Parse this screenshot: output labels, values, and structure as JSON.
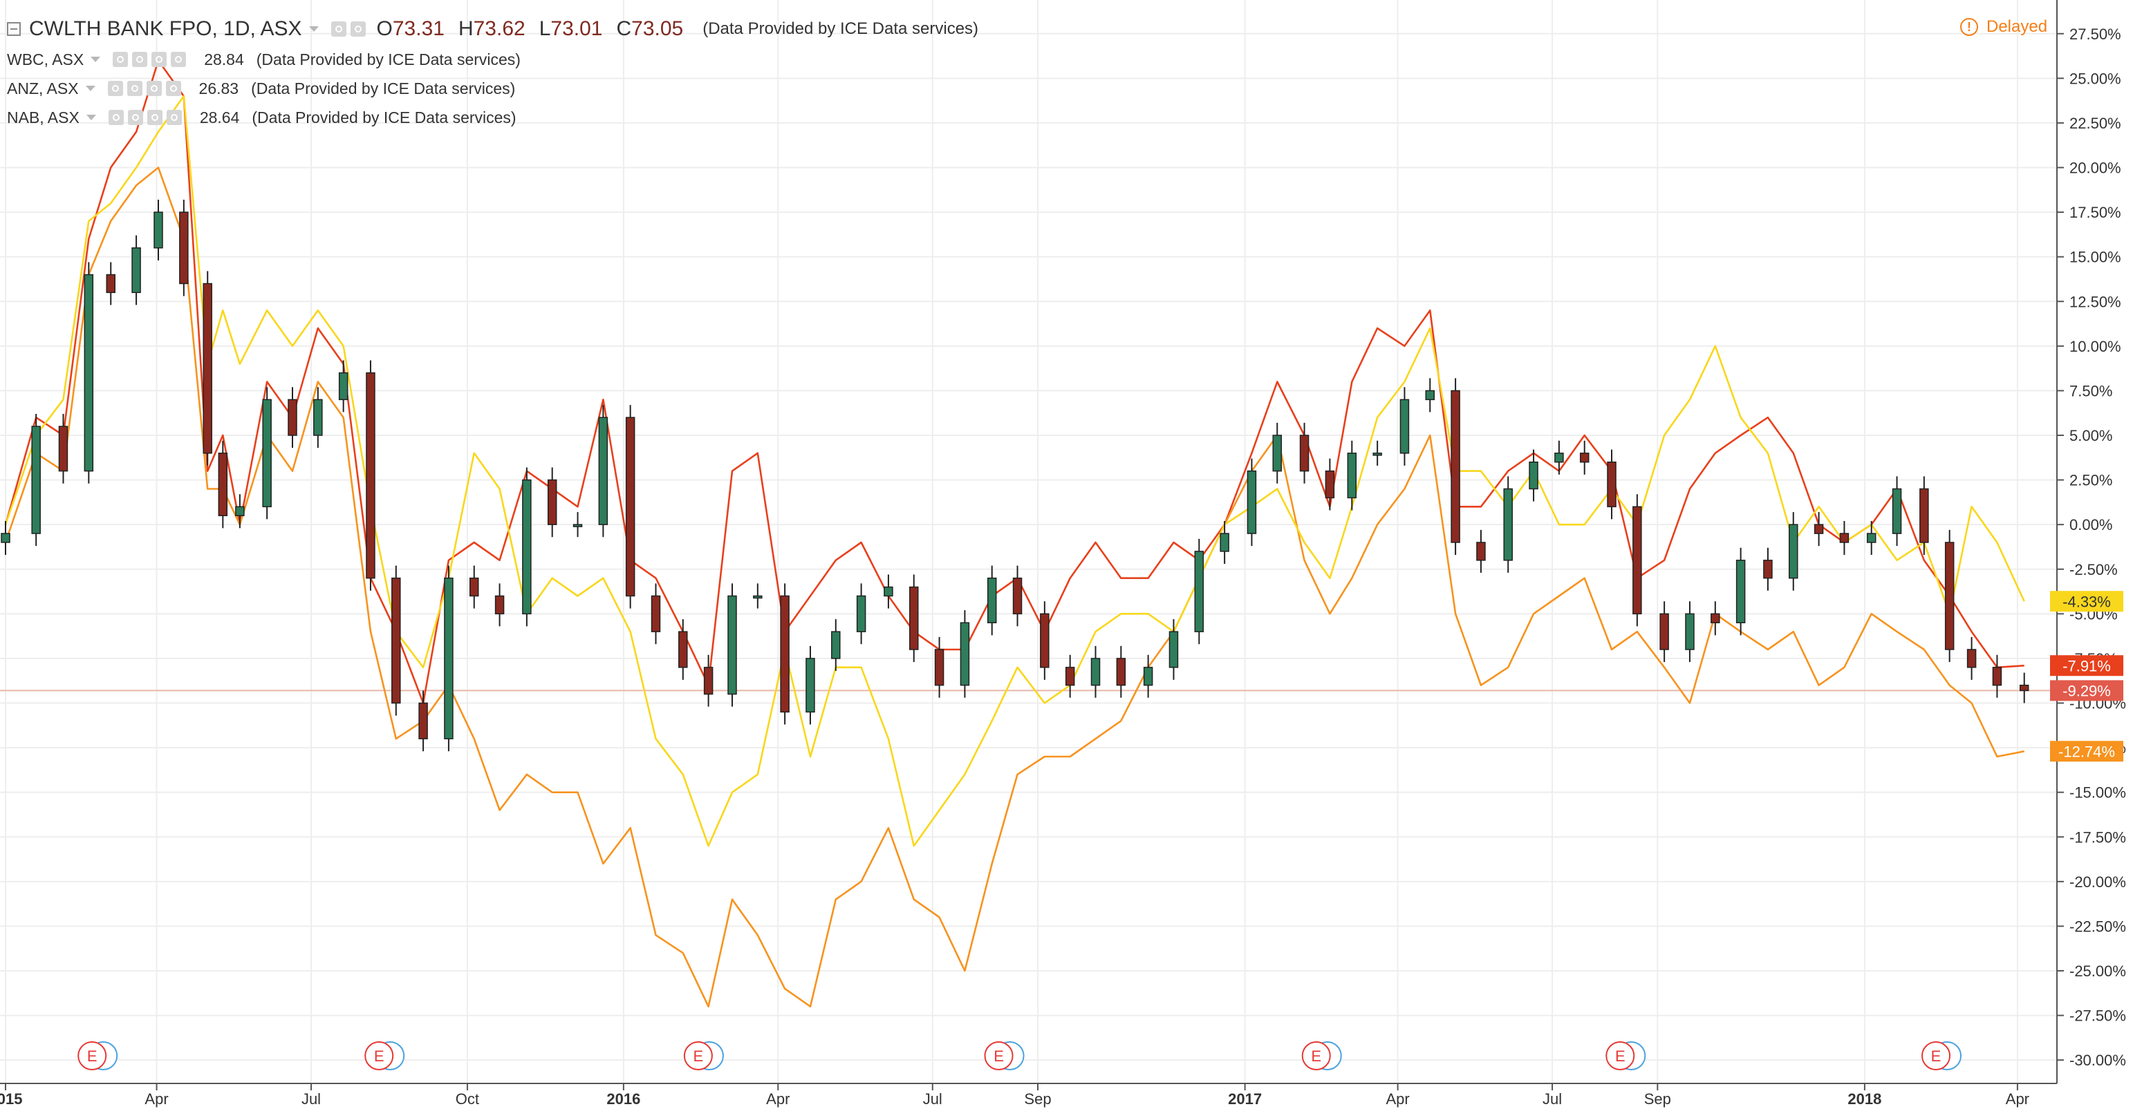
{
  "main_series": {
    "title": "CWLTH BANK FPO, 1D, ASX",
    "ohlc": [
      {
        "key": "O",
        "value": "73.31"
      },
      {
        "key": "H",
        "value": "73.62"
      },
      {
        "key": "L",
        "value": "73.01"
      },
      {
        "key": "C",
        "value": "73.05"
      }
    ],
    "source_note": "(Data Provided by ICE Data services)"
  },
  "status": {
    "text": "Delayed",
    "icon": "exclamation-circle-icon",
    "color": "#f57f17"
  },
  "colors": {
    "candle_up": "#2e7d5b",
    "candle_down": "#8b2a20",
    "grid": "#eeeeee",
    "axis_text": "#333333",
    "base_line": "#e8b8a8"
  },
  "chart_data": {
    "type": "line",
    "title": "CWLTH BANK FPO, 1D, ASX",
    "xlabel": "",
    "ylabel": "",
    "percent_scale": true,
    "ylim": [
      -31,
      29
    ],
    "yticks": [
      27.5,
      25,
      22.5,
      20,
      17.5,
      15,
      12.5,
      10,
      7.5,
      5,
      2.5,
      0,
      -2.5,
      -5,
      -7.5,
      -10,
      -12.5,
      -15,
      -17.5,
      -20,
      -22.5,
      -25,
      -27.5,
      -30
    ],
    "ytick_labels": [
      "27.50%",
      "25.00%",
      "22.50%",
      "20.00%",
      "17.50%",
      "15.00%",
      "12.50%",
      "10.00%",
      "7.50%",
      "5.00%",
      "2.50%",
      "0.00%",
      "-2.50%",
      "-5.00%",
      "-7.50%",
      "-10.00%",
      "-12.50%",
      "-15.00%",
      "-17.50%",
      "-20.00%",
      "-22.50%",
      "-25.00%",
      "-27.50%",
      "-30.00%"
    ],
    "x_range": [
      "2015-01-02",
      "2018-04-10"
    ],
    "x_ticks": [
      {
        "date": "2015-01-02",
        "label": "2015",
        "bold": true
      },
      {
        "date": "2015-04-01",
        "label": "Apr",
        "bold": false
      },
      {
        "date": "2015-07-01",
        "label": "Jul",
        "bold": false
      },
      {
        "date": "2015-10-01",
        "label": "Oct",
        "bold": false
      },
      {
        "date": "2016-01-01",
        "label": "2016",
        "bold": true
      },
      {
        "date": "2016-04-01",
        "label": "Apr",
        "bold": false
      },
      {
        "date": "2016-07-01",
        "label": "Jul",
        "bold": false
      },
      {
        "date": "2016-09-01",
        "label": "Sep",
        "bold": false
      },
      {
        "date": "2017-01-01",
        "label": "2017",
        "bold": true
      },
      {
        "date": "2017-04-01",
        "label": "Apr",
        "bold": false
      },
      {
        "date": "2017-07-01",
        "label": "Jul",
        "bold": false
      },
      {
        "date": "2017-09-01",
        "label": "Sep",
        "bold": false
      },
      {
        "date": "2018-01-01",
        "label": "2018",
        "bold": true
      },
      {
        "date": "2018-04-01",
        "label": "Apr",
        "bold": false
      }
    ],
    "grid": true,
    "legend_placement": "top-left",
    "main": {
      "name": "CWLTH BANK FPO, 1D, ASX",
      "style": "candlestick",
      "last_label": "-9.29%",
      "label_color": "#e25a4c",
      "x": [
        "2015-01-02",
        "2015-01-20",
        "2015-02-05",
        "2015-02-20",
        "2015-03-05",
        "2015-03-20",
        "2015-04-02",
        "2015-04-17",
        "2015-05-01",
        "2015-05-10",
        "2015-05-20",
        "2015-06-05",
        "2015-06-20",
        "2015-07-05",
        "2015-07-20",
        "2015-08-05",
        "2015-08-20",
        "2015-09-05",
        "2015-09-20",
        "2015-10-05",
        "2015-10-20",
        "2015-11-05",
        "2015-11-20",
        "2015-12-05",
        "2015-12-20",
        "2016-01-05",
        "2016-01-20",
        "2016-02-05",
        "2016-02-20",
        "2016-03-05",
        "2016-03-20",
        "2016-04-05",
        "2016-04-20",
        "2016-05-05",
        "2016-05-20",
        "2016-06-05",
        "2016-06-20",
        "2016-07-05",
        "2016-07-20",
        "2016-08-05",
        "2016-08-20",
        "2016-09-05",
        "2016-09-20",
        "2016-10-05",
        "2016-10-20",
        "2016-11-05",
        "2016-11-20",
        "2016-12-05",
        "2016-12-20",
        "2017-01-05",
        "2017-01-20",
        "2017-02-05",
        "2017-02-20",
        "2017-03-05",
        "2017-03-20",
        "2017-04-05",
        "2017-04-20",
        "2017-05-05",
        "2017-05-20",
        "2017-06-05",
        "2017-06-20",
        "2017-07-05",
        "2017-07-20",
        "2017-08-05",
        "2017-08-20",
        "2017-09-05",
        "2017-09-20",
        "2017-10-05",
        "2017-10-20",
        "2017-11-05",
        "2017-11-20",
        "2017-12-05",
        "2017-12-20",
        "2018-01-05",
        "2018-01-20",
        "2018-02-05",
        "2018-02-20",
        "2018-03-05",
        "2018-03-20",
        "2018-04-05"
      ],
      "y": [
        -0.5,
        5.5,
        3,
        14,
        13,
        15.5,
        17.5,
        13.5,
        4,
        0.5,
        1,
        7,
        5,
        7,
        8.5,
        -3,
        -10,
        -12,
        -3,
        -4,
        -5,
        2.5,
        0,
        0,
        6,
        -4,
        -6,
        -8,
        -9.5,
        -4,
        -4,
        -10.5,
        -7.5,
        -6,
        -4,
        -3.5,
        -7,
        -9,
        -5.5,
        -3,
        -5,
        -8,
        -9,
        -7.5,
        -9,
        -8,
        -6,
        -1.5,
        -0.5,
        3,
        5,
        3,
        1.5,
        4,
        4,
        7,
        7.5,
        -1,
        -2,
        2,
        3.5,
        4,
        3.5,
        1,
        -5,
        -7,
        -5,
        -5.5,
        -2,
        -3,
        0,
        -0.5,
        -1,
        -0.5,
        2,
        -1,
        -7,
        -8,
        -9,
        -9.3
      ]
    },
    "series": [
      {
        "name": "WBC, ASX",
        "color": "#e8401c",
        "legend_value": "28.84",
        "last_label": "-7.91%",
        "x": [
          "2015-01-02",
          "2015-01-20",
          "2015-02-05",
          "2015-02-20",
          "2015-03-05",
          "2015-03-20",
          "2015-04-02",
          "2015-04-17",
          "2015-05-01",
          "2015-05-10",
          "2015-05-20",
          "2015-06-05",
          "2015-06-20",
          "2015-07-05",
          "2015-07-20",
          "2015-08-05",
          "2015-08-20",
          "2015-09-05",
          "2015-09-20",
          "2015-10-05",
          "2015-10-20",
          "2015-11-05",
          "2015-11-20",
          "2015-12-05",
          "2015-12-20",
          "2016-01-05",
          "2016-01-20",
          "2016-02-05",
          "2016-02-20",
          "2016-03-05",
          "2016-03-20",
          "2016-04-05",
          "2016-04-20",
          "2016-05-05",
          "2016-05-20",
          "2016-06-05",
          "2016-06-20",
          "2016-07-05",
          "2016-07-20",
          "2016-08-05",
          "2016-08-20",
          "2016-09-05",
          "2016-09-20",
          "2016-10-05",
          "2016-10-20",
          "2016-11-05",
          "2016-11-20",
          "2016-12-05",
          "2016-12-20",
          "2017-01-05",
          "2017-01-20",
          "2017-02-05",
          "2017-02-20",
          "2017-03-05",
          "2017-03-20",
          "2017-04-05",
          "2017-04-20",
          "2017-05-05",
          "2017-05-20",
          "2017-06-05",
          "2017-06-20",
          "2017-07-05",
          "2017-07-20",
          "2017-08-05",
          "2017-08-20",
          "2017-09-05",
          "2017-09-20",
          "2017-10-05",
          "2017-10-20",
          "2017-11-05",
          "2017-11-20",
          "2017-12-05",
          "2017-12-20",
          "2018-01-05",
          "2018-01-20",
          "2018-02-05",
          "2018-02-20",
          "2018-03-05",
          "2018-03-20",
          "2018-04-05"
        ],
        "y": [
          0,
          6,
          5,
          16,
          20,
          22,
          26,
          24,
          3,
          5,
          0,
          8,
          6,
          11,
          9,
          -3,
          -6,
          -10,
          -2,
          -1,
          -2,
          3,
          2,
          1,
          7,
          -2,
          -3,
          -6,
          -9,
          3,
          4,
          -6,
          -4,
          -2,
          -1,
          -4,
          -6,
          -7,
          -7,
          -4,
          -3,
          -6,
          -3,
          -1,
          -3,
          -3,
          -1,
          -2,
          0,
          4,
          8,
          5,
          1,
          8,
          11,
          10,
          12,
          1,
          1,
          3,
          4,
          3,
          5,
          3,
          -3,
          -2,
          2,
          4,
          5,
          6,
          4,
          0,
          -1,
          0,
          2,
          -2,
          -4,
          -6,
          -8,
          -7.9
        ]
      },
      {
        "name": "ANZ, ASX",
        "color": "#f7931e",
        "legend_value": "26.83",
        "last_label": "-12.74%",
        "x": [
          "2015-01-02",
          "2015-01-20",
          "2015-02-05",
          "2015-02-20",
          "2015-03-05",
          "2015-03-20",
          "2015-04-02",
          "2015-04-17",
          "2015-05-01",
          "2015-05-10",
          "2015-05-20",
          "2015-06-05",
          "2015-06-20",
          "2015-07-05",
          "2015-07-20",
          "2015-08-05",
          "2015-08-20",
          "2015-09-05",
          "2015-09-20",
          "2015-10-05",
          "2015-10-20",
          "2015-11-05",
          "2015-11-20",
          "2015-12-05",
          "2015-12-20",
          "2016-01-05",
          "2016-01-20",
          "2016-02-05",
          "2016-02-20",
          "2016-03-05",
          "2016-03-20",
          "2016-04-05",
          "2016-04-20",
          "2016-05-05",
          "2016-05-20",
          "2016-06-05",
          "2016-06-20",
          "2016-07-05",
          "2016-07-20",
          "2016-08-05",
          "2016-08-20",
          "2016-09-05",
          "2016-09-20",
          "2016-10-05",
          "2016-10-20",
          "2016-11-05",
          "2016-11-20",
          "2016-12-05",
          "2016-12-20",
          "2017-01-05",
          "2017-01-20",
          "2017-02-05",
          "2017-02-20",
          "2017-03-05",
          "2017-03-20",
          "2017-04-05",
          "2017-04-20",
          "2017-05-05",
          "2017-05-20",
          "2017-06-05",
          "2017-06-20",
          "2017-07-05",
          "2017-07-20",
          "2017-08-05",
          "2017-08-20",
          "2017-09-05",
          "2017-09-20",
          "2017-10-05",
          "2017-10-20",
          "2017-11-05",
          "2017-11-20",
          "2017-12-05",
          "2017-12-20",
          "2018-01-05",
          "2018-01-20",
          "2018-02-05",
          "2018-02-20",
          "2018-03-05",
          "2018-03-20",
          "2018-04-05"
        ],
        "y": [
          -1,
          4,
          3,
          14,
          17,
          19,
          20,
          16,
          2,
          2,
          0,
          5,
          3,
          8,
          6,
          -6,
          -12,
          -11,
          -9,
          -12,
          -16,
          -14,
          -15,
          -15,
          -19,
          -17,
          -23,
          -24,
          -27,
          -21,
          -23,
          -26,
          -27,
          -21,
          -20,
          -17,
          -21,
          -22,
          -25,
          -19,
          -14,
          -13,
          -13,
          -12,
          -11,
          -8,
          -6,
          -3,
          0,
          3,
          5,
          -2,
          -5,
          -3,
          0,
          2,
          5,
          -5,
          -9,
          -8,
          -5,
          -4,
          -3,
          -7,
          -6,
          -8,
          -10,
          -5,
          -6,
          -7,
          -6,
          -9,
          -8,
          -5,
          -6,
          -7,
          -9,
          -10,
          -13,
          -12.7
        ]
      },
      {
        "name": "NAB, ASX",
        "color": "#f9d71c",
        "legend_value": "28.64",
        "last_label": "-4.33%",
        "x": [
          "2015-01-02",
          "2015-01-20",
          "2015-02-05",
          "2015-02-20",
          "2015-03-05",
          "2015-03-20",
          "2015-04-02",
          "2015-04-17",
          "2015-05-01",
          "2015-05-10",
          "2015-05-20",
          "2015-06-05",
          "2015-06-20",
          "2015-07-05",
          "2015-07-20",
          "2015-08-05",
          "2015-08-20",
          "2015-09-05",
          "2015-09-20",
          "2015-10-05",
          "2015-10-20",
          "2015-11-05",
          "2015-11-20",
          "2015-12-05",
          "2015-12-20",
          "2016-01-05",
          "2016-01-20",
          "2016-02-05",
          "2016-02-20",
          "2016-03-05",
          "2016-03-20",
          "2016-04-05",
          "2016-04-20",
          "2016-05-05",
          "2016-05-20",
          "2016-06-05",
          "2016-06-20",
          "2016-07-05",
          "2016-07-20",
          "2016-08-05",
          "2016-08-20",
          "2016-09-05",
          "2016-09-20",
          "2016-10-05",
          "2016-10-20",
          "2016-11-05",
          "2016-11-20",
          "2016-12-05",
          "2016-12-20",
          "2017-01-05",
          "2017-01-20",
          "2017-02-05",
          "2017-02-20",
          "2017-03-05",
          "2017-03-20",
          "2017-04-05",
          "2017-04-20",
          "2017-05-05",
          "2017-05-20",
          "2017-06-05",
          "2017-06-20",
          "2017-07-05",
          "2017-07-20",
          "2017-08-05",
          "2017-08-20",
          "2017-09-05",
          "2017-09-20",
          "2017-10-05",
          "2017-10-20",
          "2017-11-05",
          "2017-11-20",
          "2017-12-05",
          "2017-12-20",
          "2018-01-05",
          "2018-01-20",
          "2018-02-05",
          "2018-02-20",
          "2018-03-05",
          "2018-03-20",
          "2018-04-05"
        ],
        "y": [
          0,
          5,
          7,
          17,
          18,
          20,
          22,
          24,
          9,
          12,
          9,
          12,
          10,
          12,
          10,
          1,
          -6,
          -8,
          -3,
          4,
          2,
          -5,
          -3,
          -4,
          -3,
          -6,
          -12,
          -14,
          -18,
          -15,
          -14,
          -7,
          -13,
          -8,
          -8,
          -12,
          -18,
          -16,
          -14,
          -11,
          -8,
          -10,
          -9,
          -6,
          -5,
          -5,
          -6,
          -3,
          0,
          1,
          2,
          -1,
          -3,
          1,
          6,
          8,
          11,
          3,
          3,
          1,
          3,
          0,
          0,
          2,
          0,
          5,
          7,
          10,
          6,
          4,
          -1,
          1,
          -1,
          0,
          -2,
          -1,
          -5,
          1,
          -1,
          -4.3
        ]
      }
    ],
    "event_markers": [
      {
        "date": "2015-02-22",
        "label": "E"
      },
      {
        "date": "2015-08-10",
        "label": "E"
      },
      {
        "date": "2016-02-14",
        "label": "E"
      },
      {
        "date": "2016-08-09",
        "label": "E"
      },
      {
        "date": "2017-02-12",
        "label": "E"
      },
      {
        "date": "2017-08-10",
        "label": "E"
      },
      {
        "date": "2018-02-12",
        "label": "E"
      }
    ]
  }
}
